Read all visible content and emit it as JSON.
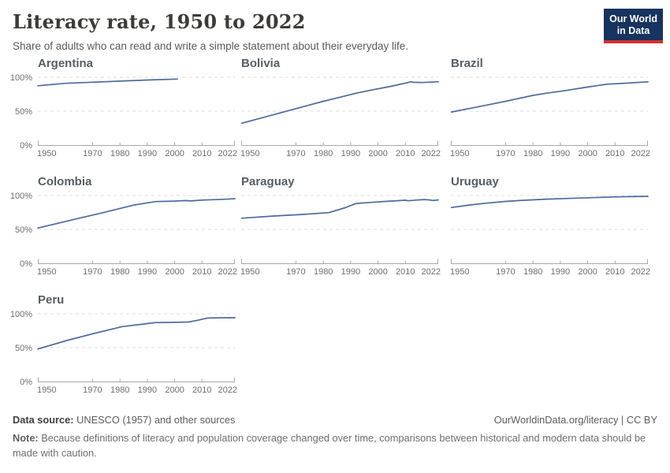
{
  "header": {
    "title": "Literacy rate, 1950 to 2022",
    "subtitle": "Share of adults who can read and write a simple statement about their everyday life.",
    "logo_line1": "Our World",
    "logo_line2": "in Data"
  },
  "colors": {
    "line": "#4c6a9c",
    "grid": "#dcdcdc",
    "axis": "#a8a8a8",
    "tick_label": "#6d6d6d",
    "logo_bg": "#17335f",
    "logo_red": "#d3312f"
  },
  "axes": {
    "xlim": [
      1950,
      2022
    ],
    "ylim": [
      0,
      100
    ],
    "x_tick_labels": [
      "1950",
      "1970",
      "1980",
      "1990",
      "2000",
      "2010",
      "2022"
    ],
    "x_tick_years": [
      1950,
      1970,
      1980,
      1990,
      2000,
      2010,
      2022
    ],
    "y_tick_labels": [
      "0%",
      "50%",
      "100%"
    ],
    "y_tick_values": [
      0,
      50,
      100
    ],
    "y_unit": "%",
    "grid": "dashed horizontal at 50% and 100%"
  },
  "chart_data": [
    {
      "type": "line",
      "title": "Argentina",
      "points": [
        [
          1950,
          87.5
        ],
        [
          1960,
          91.1
        ],
        [
          1970,
          92.7
        ],
        [
          1980,
          94.3
        ],
        [
          1991,
          96.0
        ],
        [
          2001,
          97.3
        ]
      ]
    },
    {
      "type": "line",
      "title": "Bolivia",
      "points": [
        [
          1950,
          32.0
        ],
        [
          1956,
          38.5
        ],
        [
          1962,
          45.0
        ],
        [
          1968,
          51.5
        ],
        [
          1974,
          58.0
        ],
        [
          1980,
          64.5
        ],
        [
          1986,
          70.5
        ],
        [
          1992,
          76.5
        ],
        [
          1998,
          81.5
        ],
        [
          2004,
          86.0
        ],
        [
          2008,
          89.5
        ],
        [
          2012,
          93.3
        ],
        [
          2013,
          92.6
        ],
        [
          2016,
          92.2
        ],
        [
          2019,
          92.8
        ],
        [
          2022,
          93.4
        ]
      ]
    },
    {
      "type": "line",
      "title": "Brazil",
      "points": [
        [
          1950,
          48.5
        ],
        [
          1960,
          56.5
        ],
        [
          1970,
          64.5
        ],
        [
          1980,
          73.2
        ],
        [
          1985,
          76.5
        ],
        [
          1991,
          79.9
        ],
        [
          2000,
          85.6
        ],
        [
          2007,
          89.8
        ],
        [
          2014,
          91.3
        ],
        [
          2022,
          93.2
        ]
      ]
    },
    {
      "type": "line",
      "title": "Colombia",
      "points": [
        [
          1950,
          52.0
        ],
        [
          1964,
          65.5
        ],
        [
          1973,
          74.0
        ],
        [
          1985,
          85.8
        ],
        [
          1993,
          91.0
        ],
        [
          2000,
          91.7
        ],
        [
          2004,
          92.6
        ],
        [
          2006,
          92.0
        ],
        [
          2010,
          93.3
        ],
        [
          2015,
          94.0
        ],
        [
          2018,
          94.4
        ],
        [
          2022,
          95.3
        ]
      ]
    },
    {
      "type": "line",
      "title": "Paraguay",
      "points": [
        [
          1950,
          66.5
        ],
        [
          1962,
          69.8
        ],
        [
          1972,
          72.0
        ],
        [
          1982,
          74.8
        ],
        [
          1988,
          82.0
        ],
        [
          1992,
          88.3
        ],
        [
          1997,
          89.8
        ],
        [
          2002,
          91.2
        ],
        [
          2007,
          92.3
        ],
        [
          2010,
          93.1
        ],
        [
          2011,
          92.2
        ],
        [
          2014,
          93.2
        ],
        [
          2017,
          94.1
        ],
        [
          2019,
          93.4
        ],
        [
          2020,
          92.7
        ],
        [
          2022,
          93.5
        ]
      ]
    },
    {
      "type": "line",
      "title": "Uruguay",
      "points": [
        [
          1950,
          82.2
        ],
        [
          1957,
          86.0
        ],
        [
          1963,
          88.7
        ],
        [
          1970,
          91.3
        ],
        [
          1975,
          92.5
        ],
        [
          1985,
          94.6
        ],
        [
          1996,
          96.2
        ],
        [
          2006,
          97.5
        ],
        [
          2011,
          98.0
        ],
        [
          2016,
          98.4
        ],
        [
          2022,
          98.7
        ]
      ]
    },
    {
      "type": "line",
      "title": "Peru",
      "points": [
        [
          1950,
          48.0
        ],
        [
          1961,
          61.0
        ],
        [
          1972,
          72.5
        ],
        [
          1981,
          81.2
        ],
        [
          1990,
          85.5
        ],
        [
          1993,
          87.0
        ],
        [
          2000,
          87.3
        ],
        [
          2005,
          87.8
        ],
        [
          2008,
          90.0
        ],
        [
          2012,
          93.7
        ],
        [
          2017,
          94.1
        ],
        [
          2022,
          94.2
        ]
      ]
    }
  ],
  "footer": {
    "datasource_label": "Data source:",
    "datasource_text": " UNESCO (1957) and other sources",
    "link": "OurWorldinData.org/literacy | CC BY",
    "note_label": "Note:",
    "note_text": " Because definitions of literacy and population coverage changed over time, comparisons between historical and modern data should be made with caution."
  }
}
